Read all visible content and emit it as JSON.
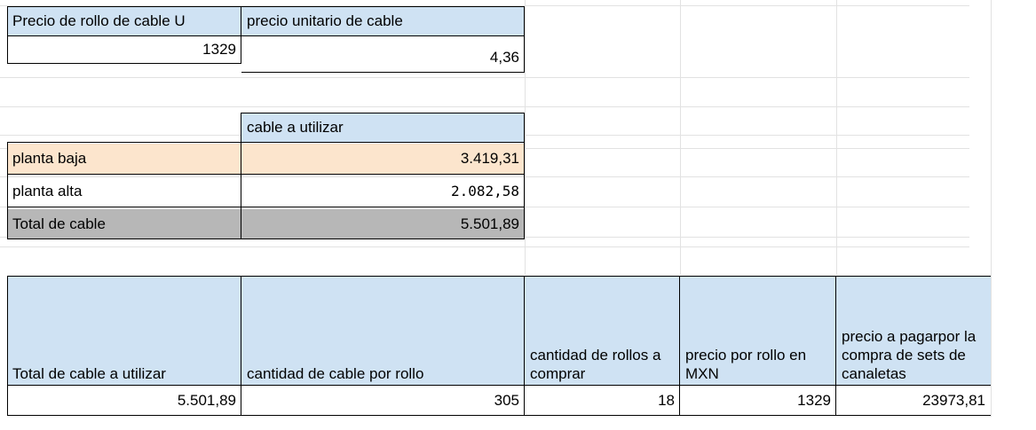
{
  "prices": {
    "roll_header": "Precio de rollo de cable U",
    "unit_header": "precio unitario de cable",
    "roll_value": "1329",
    "unit_value": "4,36"
  },
  "cable": {
    "header": "cable a utilizar",
    "rows": [
      {
        "label": "planta baja",
        "value": "3.419,31"
      },
      {
        "label": "planta alta",
        "value": "2.082,58"
      },
      {
        "label": "Total de cable",
        "value": "5.501,89"
      }
    ]
  },
  "purchase": {
    "headers": [
      "Total de cable a utilizar",
      "cantidad de cable por rollo",
      "cantidad de rollos a comprar",
      "precio por rollo en MXN",
      "precio a pagarpor la compra de sets de canaletas"
    ],
    "values": [
      "5.501,89",
      "305",
      "18",
      "1329",
      "23973,81"
    ]
  },
  "colors": {
    "header_blue": "#cfe2f3",
    "label_peach": "#fce5cd",
    "total_gray": "#b7b7b7"
  }
}
